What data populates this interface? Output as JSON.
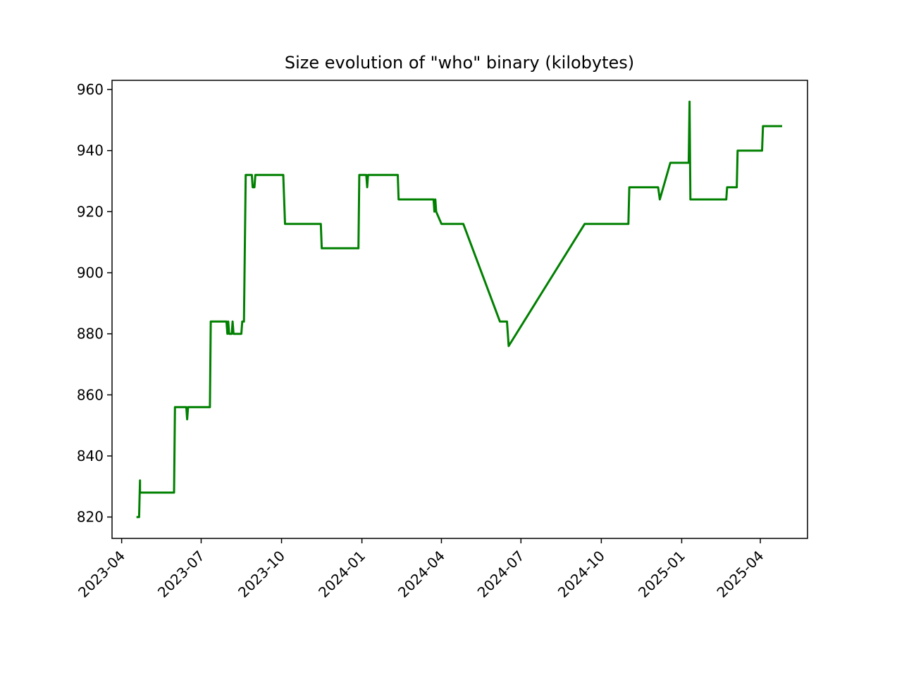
{
  "chart_data": {
    "type": "line",
    "title": "Size evolution of \"who\" binary (kilobytes)",
    "xlabel": "",
    "ylabel": "",
    "xlim": [
      "2023-03-21",
      "2025-05-25"
    ],
    "ylim": [
      813,
      963
    ],
    "grid": false,
    "line_color": "#008000",
    "x_ticks": [
      "2023-04",
      "2023-07",
      "2023-10",
      "2024-01",
      "2024-04",
      "2024-07",
      "2024-10",
      "2025-01",
      "2025-04"
    ],
    "y_ticks": [
      820,
      840,
      860,
      880,
      900,
      920,
      940,
      960
    ],
    "series": [
      {
        "points": [
          [
            "2023-04-18",
            820
          ],
          [
            "2023-04-21",
            820
          ],
          [
            "2023-04-22",
            832
          ],
          [
            "2023-04-22",
            828
          ],
          [
            "2023-05-31",
            828
          ],
          [
            "2023-06-01",
            856
          ],
          [
            "2023-06-14",
            856
          ],
          [
            "2023-06-15",
            852
          ],
          [
            "2023-06-16",
            856
          ],
          [
            "2023-07-11",
            856
          ],
          [
            "2023-07-12",
            884
          ],
          [
            "2023-07-30",
            884
          ],
          [
            "2023-07-31",
            880
          ],
          [
            "2023-08-01",
            884
          ],
          [
            "2023-08-02",
            880
          ],
          [
            "2023-08-05",
            880
          ],
          [
            "2023-08-06",
            884
          ],
          [
            "2023-08-07",
            880
          ],
          [
            "2023-08-16",
            880
          ],
          [
            "2023-08-17",
            884
          ],
          [
            "2023-08-19",
            884
          ],
          [
            "2023-08-21",
            932
          ],
          [
            "2023-08-28",
            932
          ],
          [
            "2023-08-29",
            928
          ],
          [
            "2023-08-31",
            928
          ],
          [
            "2023-09-01",
            932
          ],
          [
            "2023-10-03",
            932
          ],
          [
            "2023-10-05",
            916
          ],
          [
            "2023-11-15",
            916
          ],
          [
            "2023-11-16",
            908
          ],
          [
            "2023-12-28",
            908
          ],
          [
            "2023-12-29",
            932
          ],
          [
            "2024-01-06",
            932
          ],
          [
            "2024-01-07",
            928
          ],
          [
            "2024-01-08",
            932
          ],
          [
            "2024-02-11",
            932
          ],
          [
            "2024-02-12",
            924
          ],
          [
            "2024-03-23",
            924
          ],
          [
            "2024-03-24",
            920
          ],
          [
            "2024-03-25",
            924
          ],
          [
            "2024-03-26",
            920
          ],
          [
            "2024-04-01",
            916
          ],
          [
            "2024-04-26",
            916
          ],
          [
            "2024-06-07",
            884
          ],
          [
            "2024-06-15",
            884
          ],
          [
            "2024-06-17",
            876
          ],
          [
            "2024-09-12",
            916
          ],
          [
            "2024-11-01",
            916
          ],
          [
            "2024-11-02",
            928
          ],
          [
            "2024-12-05",
            928
          ],
          [
            "2024-12-07",
            924
          ],
          [
            "2024-12-19",
            936
          ],
          [
            "2025-01-09",
            936
          ],
          [
            "2025-01-10",
            956
          ],
          [
            "2025-01-11",
            924
          ],
          [
            "2025-02-21",
            924
          ],
          [
            "2025-02-22",
            928
          ],
          [
            "2025-03-05",
            928
          ],
          [
            "2025-03-06",
            940
          ],
          [
            "2025-04-03",
            940
          ],
          [
            "2025-04-04",
            948
          ],
          [
            "2025-04-26",
            948
          ]
        ]
      }
    ]
  }
}
